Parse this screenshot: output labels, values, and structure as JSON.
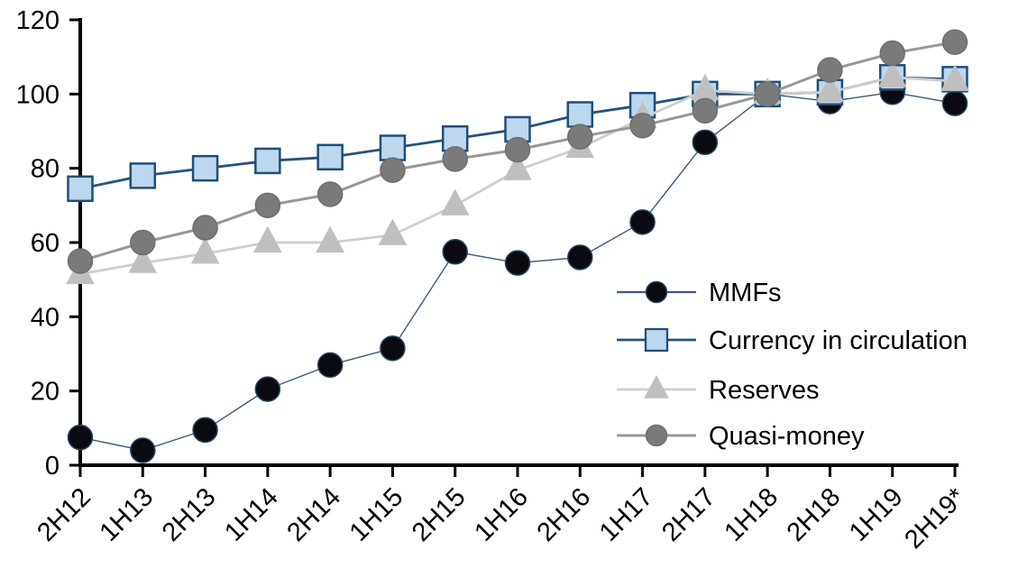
{
  "chart_data": {
    "type": "line",
    "title": "",
    "xlabel": "",
    "ylabel": "",
    "grid": false,
    "legend_position": "inside-right",
    "ylim": [
      0,
      120
    ],
    "yticks": [
      0,
      20,
      40,
      60,
      80,
      100,
      120
    ],
    "categories": [
      "2H12",
      "1H13",
      "2H13",
      "1H14",
      "2H14",
      "1H15",
      "2H15",
      "1H16",
      "2H16",
      "1H17",
      "2H17",
      "1H18",
      "2H18",
      "1H19",
      "2H19*"
    ],
    "series": [
      {
        "name": "MMFs",
        "marker": "circle",
        "marker_fill": "#0a0a10",
        "marker_stroke": "#26425f",
        "line_color": "#3c5a80",
        "line_width": 1.4,
        "values": [
          7.5,
          4,
          9.5,
          20.5,
          27,
          31.5,
          57.5,
          54.5,
          56,
          65.5,
          87,
          100,
          98,
          100.5,
          97.5
        ]
      },
      {
        "name": "Currency in circulation",
        "marker": "square",
        "marker_fill": "#bdd7ee",
        "marker_stroke": "#1f4e79",
        "line_color": "#24527e",
        "line_width": 2.8,
        "values": [
          74.5,
          78,
          80,
          82,
          83,
          85.5,
          88,
          90.5,
          94.5,
          97,
          100,
          100,
          100.5,
          104.5,
          104
        ]
      },
      {
        "name": "Reserves",
        "marker": "triangle",
        "marker_fill": "#bfbfbf",
        "marker_stroke": "#bfbfbf",
        "line_color": "#cdcdcd",
        "line_width": 2.8,
        "values": [
          51.5,
          54.5,
          57,
          60,
          60,
          62,
          70,
          79.5,
          85.5,
          93.5,
          101,
          100,
          100.5,
          104.5,
          103.5
        ]
      },
      {
        "name": "Quasi-money",
        "marker": "circle",
        "marker_fill": "#7a7a7a",
        "marker_stroke": "#6e6e6e",
        "line_color": "#979797",
        "line_width": 3,
        "values": [
          55,
          60,
          64,
          70,
          73,
          79.5,
          82.5,
          85,
          88.5,
          91.5,
          95.5,
          100,
          106.5,
          111,
          114
        ]
      }
    ],
    "axis_color": "#000000",
    "text_color": "#000000"
  }
}
